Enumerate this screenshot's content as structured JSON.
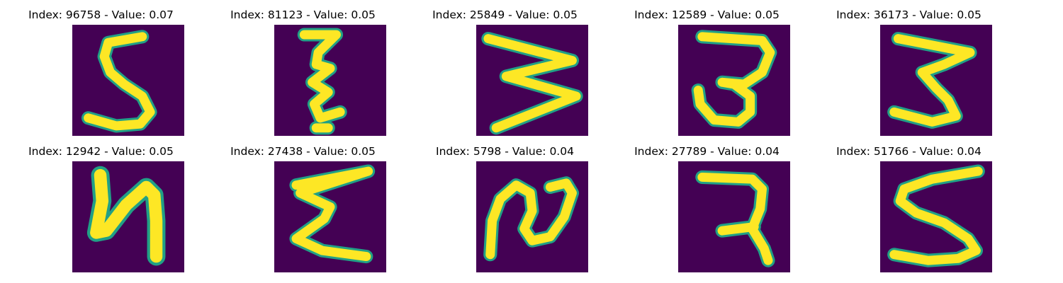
{
  "figure": {
    "panels": [
      {
        "title": "Index: 96758 - Value: 0.07",
        "index": 96758,
        "value": 0.07,
        "glyph": "5"
      },
      {
        "title": "Index: 81123 - Value: 0.05",
        "index": 81123,
        "value": 0.05,
        "glyph": "zigzag-stroke"
      },
      {
        "title": "Index: 25849 - Value: 0.05",
        "index": 25849,
        "value": 0.05,
        "glyph": "rotated-M"
      },
      {
        "title": "Index: 12589 - Value: 0.05",
        "index": 12589,
        "value": 0.05,
        "glyph": "3-loop"
      },
      {
        "title": "Index: 36173 - Value: 0.05",
        "index": 36173,
        "value": 0.05,
        "glyph": "3"
      },
      {
        "title": "Index: 12942 - Value: 0.05",
        "index": 12942,
        "value": 0.05,
        "glyph": "4"
      },
      {
        "title": "Index: 27438 - Value: 0.05",
        "index": 27438,
        "value": 0.05,
        "glyph": "sigma"
      },
      {
        "title": "Index: 5798 - Value: 0.04",
        "index": 5798,
        "value": 0.04,
        "glyph": "2-curl"
      },
      {
        "title": "Index: 27789 - Value: 0.04",
        "index": 27789,
        "value": 0.04,
        "glyph": "7-cross"
      },
      {
        "title": "Index: 51766 - Value: 0.04",
        "index": 51766,
        "value": 0.04,
        "glyph": "5-sweep"
      }
    ],
    "colors": {
      "background": "#440154",
      "stroke_edge": "#21a086",
      "stroke_core": "#fde725"
    }
  }
}
